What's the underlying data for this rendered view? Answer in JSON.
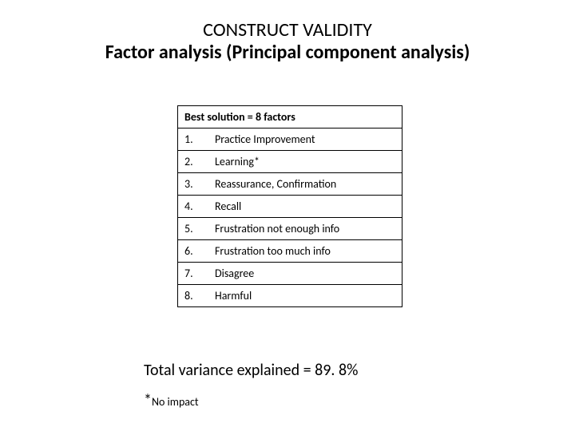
{
  "title": {
    "line1": "CONSTRUCT VALIDITY",
    "line2": "Factor analysis (Principal component analysis)"
  },
  "table": {
    "header": "Best solution = 8 factors",
    "rows": [
      {
        "num": "1.",
        "label": "Practice Improvement"
      },
      {
        "num": "2.",
        "label": "Learning*"
      },
      {
        "num": "3.",
        "label": "Reassurance, Confirmation"
      },
      {
        "num": "4.",
        "label": "Recall"
      },
      {
        "num": "5.",
        "label": "Frustration not enough info"
      },
      {
        "num": "6.",
        "label": "Frustration too much info"
      },
      {
        "num": "7.",
        "label": "Disagree"
      },
      {
        "num": "8.",
        "label": "Harmful"
      }
    ]
  },
  "summary": "Total variance explained = 89. 8%",
  "footnote": {
    "star": "*",
    "text": "No impact"
  },
  "colors": {
    "background": "#ffffff",
    "text": "#000000",
    "border": "#000000"
  },
  "fonts": {
    "title_size_pt": 24,
    "body_size_pt": 14,
    "summary_size_pt": 20,
    "footnote_size_pt": 14
  }
}
